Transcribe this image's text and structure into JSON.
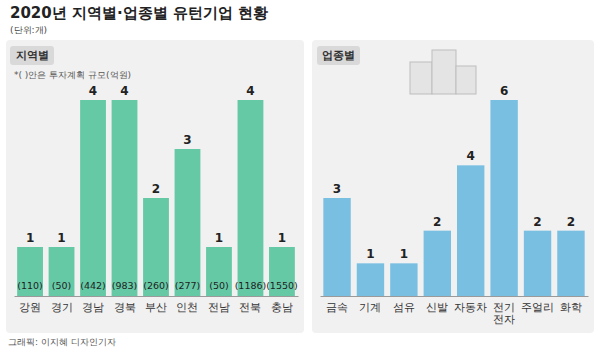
{
  "header": {
    "title": "2020년 지역별·업종별 유턴기업 현황",
    "unit": "(단위:개)"
  },
  "chart_data": [
    {
      "type": "bar",
      "title": "지역별",
      "note": "*( )안은 투자계획 규모(억원)",
      "categories": [
        "강원",
        "경기",
        "경남",
        "경북",
        "부산",
        "인천",
        "전남",
        "전북",
        "충남"
      ],
      "values": [
        1,
        1,
        4,
        4,
        2,
        3,
        1,
        4,
        1
      ],
      "investment": [
        110,
        50,
        442,
        983,
        260,
        277,
        50,
        1186,
        1550
      ],
      "investment_labels": [
        "(110)",
        "(50)",
        "(442)",
        "(983)",
        "(260)",
        "(277)",
        "(50)",
        "(1186)",
        "(1550)"
      ],
      "color": "#66c9a6",
      "ylim": [
        0,
        4
      ],
      "data_labels": true,
      "tick_labels": "x",
      "grid": false
    },
    {
      "type": "bar",
      "title": "업종별",
      "categories": [
        "금속",
        "기계",
        "섬유",
        "신발",
        "자동차",
        "전기전자",
        "주얼리",
        "화학"
      ],
      "values": [
        3,
        1,
        1,
        2,
        4,
        6,
        2,
        2
      ],
      "color": "#78bfe2",
      "ylim": [
        0,
        6
      ],
      "data_labels": true,
      "tick_labels": "x",
      "grid": false
    }
  ],
  "credit": "그래픽: 이지혜 디자인기자"
}
